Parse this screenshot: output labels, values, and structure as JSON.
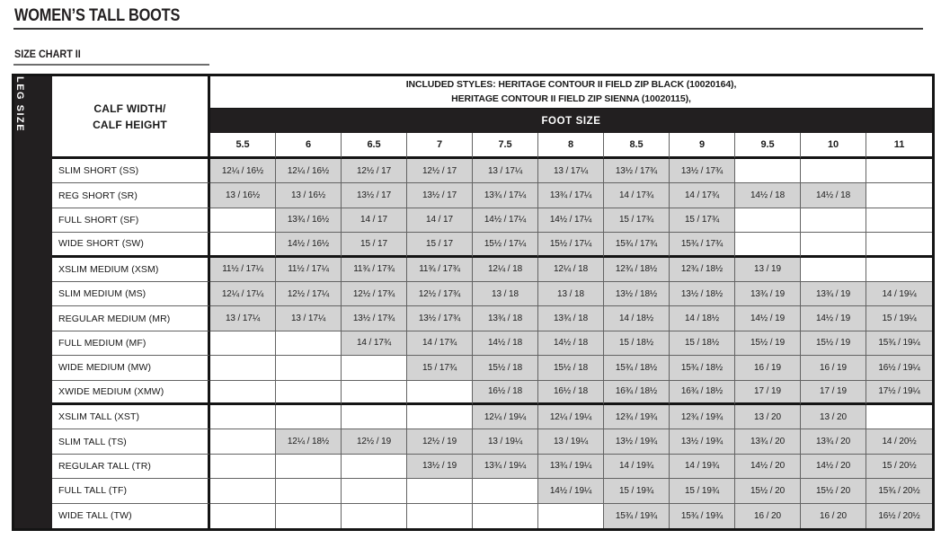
{
  "page": {
    "title": "WOMEN’S TALL BOOTS",
    "subtitle": "SIZE CHART II"
  },
  "table": {
    "included_styles_line1": "INCLUDED STYLES: HERITAGE CONTOUR II FIELD ZIP BLACK (10020164),",
    "included_styles_line2": "HERITAGE CONTOUR II FIELD ZIP SIENNA (10020115),",
    "corner_header_line1": "CALF WIDTH/",
    "corner_header_line2": "CALF HEIGHT",
    "left_axis_label": "LEG SIZE",
    "foot_size_label": "FOOT SIZE",
    "foot_sizes": [
      "5.5",
      "6",
      "6.5",
      "7",
      "7.5",
      "8",
      "8.5",
      "9",
      "9.5",
      "10",
      "11"
    ],
    "rows": [
      {
        "label": "SLIM SHORT (SS)",
        "group": "short",
        "cells": [
          "12¼ / 16½",
          "12¼ / 16½",
          "12½ / 17",
          "12½ / 17",
          "13 / 17¼",
          "13 / 17¼",
          "13½ / 17¾",
          "13½ / 17¾",
          "",
          "",
          ""
        ]
      },
      {
        "label": "REG SHORT (SR)",
        "group": "short",
        "cells": [
          "13 / 16½",
          "13 / 16½",
          "13½ / 17",
          "13½ / 17",
          "13¾ / 17¼",
          "13¾ / 17¼",
          "14 / 17¾",
          "14 / 17¾",
          "14½ / 18",
          "14½ / 18",
          ""
        ]
      },
      {
        "label": "FULL SHORT (SF)",
        "group": "short",
        "cells": [
          "",
          "13¾ / 16½",
          "14 / 17",
          "14 / 17",
          "14½ / 17¼",
          "14½ / 17¼",
          "15 / 17¾",
          "15 / 17¾",
          "",
          "",
          ""
        ]
      },
      {
        "label": "WIDE SHORT (SW)",
        "group": "short",
        "cells": [
          "",
          "14½ / 16½",
          "15 / 17",
          "15 / 17",
          "15½ / 17¼",
          "15½ / 17¼",
          "15¾ / 17¾",
          "15¾ / 17¾",
          "",
          "",
          ""
        ]
      },
      {
        "label": "XSLIM MEDIUM (XSM)",
        "group": "medium",
        "cells": [
          "11½ / 17¼",
          "11½ / 17¼",
          "11¾ / 17¾",
          "11¾ / 17¾",
          "12¼ / 18",
          "12¼ / 18",
          "12¾ / 18½",
          "12¾ / 18½",
          "13 / 19",
          "",
          ""
        ]
      },
      {
        "label": "SLIM MEDIUM (MS)",
        "group": "medium",
        "cells": [
          "12¼ / 17¼",
          "12½ / 17¼",
          "12½ / 17¾",
          "12½ / 17¾",
          "13 / 18",
          "13 / 18",
          "13½ / 18½",
          "13½ / 18½",
          "13¾ / 19",
          "13¾ / 19",
          "14 / 19¼"
        ]
      },
      {
        "label": "REGULAR  MEDIUM  (MR)",
        "group": "medium",
        "cells": [
          "13 / 17¼",
          "13 / 17¼",
          "13½ / 17¾",
          "13½ / 17¾",
          "13¾ / 18",
          "13¾ / 18",
          "14 / 18½",
          "14 / 18½",
          "14½ / 19",
          "14½ / 19",
          "15 / 19¼"
        ]
      },
      {
        "label": "FULL MEDIUM (MF)",
        "group": "medium",
        "cells": [
          "",
          "",
          "14 / 17¾",
          "14 / 17¾",
          "14½ / 18",
          "14½ / 18",
          "15 / 18½",
          "15 / 18½",
          "15½ / 19",
          "15½ / 19",
          "15¾ / 19¼"
        ]
      },
      {
        "label": "WIDE MEDIUM (MW)",
        "group": "medium",
        "cells": [
          "",
          "",
          "",
          "15 / 17¾",
          "15½ / 18",
          "15½ / 18",
          "15¾ / 18½",
          "15¾ / 18½",
          "16 / 19",
          "16 / 19",
          "16½ / 19¼"
        ]
      },
      {
        "label": "XWIDE MEDIUM (XMW)",
        "group": "medium",
        "cells": [
          "",
          "",
          "",
          "",
          "16½ / 18",
          "16½ / 18",
          "16¾ / 18½",
          "16¾ / 18½",
          "17 / 19",
          "17 / 19",
          "17½ / 19¼"
        ]
      },
      {
        "label": "XSLIM TALL (XST)",
        "group": "tall",
        "cells": [
          "",
          "",
          "",
          "",
          "12¼ / 19¼",
          "12¼ / 19¼",
          "12¾ / 19¾",
          "12¾ / 19¾",
          "13 / 20",
          "13 / 20",
          ""
        ]
      },
      {
        "label": "SLIM TALL (TS)",
        "group": "tall",
        "cells": [
          "",
          "12¼ / 18½",
          "12½ / 19",
          "12½ / 19",
          "13 / 19¼",
          "13 / 19¼",
          "13½ / 19¾",
          "13½ / 19¾",
          "13¾ / 20",
          "13¾ / 20",
          "14 / 20½"
        ]
      },
      {
        "label": "REGULAR TALL (TR)",
        "group": "tall",
        "cells": [
          "",
          "",
          "",
          "13½ / 19",
          "13¾ / 19¼",
          "13¾ / 19¼",
          "14 / 19¾",
          "14 / 19¾",
          "14½ / 20",
          "14½ / 20",
          "15 / 20½"
        ]
      },
      {
        "label": "FULL TALL (TF)",
        "group": "tall",
        "cells": [
          "",
          "",
          "",
          "",
          "",
          "14½ / 19¼",
          "15 / 19¾",
          "15 / 19¾",
          "15½ / 20",
          "15½ / 20",
          "15¾ / 20½"
        ]
      },
      {
        "label": "WIDE TALL (TW)",
        "group": "tall",
        "cells": [
          "",
          "",
          "",
          "",
          "",
          "",
          "15¾ / 19¾",
          "15¾ / 19¾",
          "16 / 20",
          "16 / 20",
          "16½ / 20½"
        ]
      }
    ]
  },
  "colors": {
    "black_bar": "#221f20",
    "filled_cell": "#d3d3d3",
    "text": "#1b1b1b"
  }
}
